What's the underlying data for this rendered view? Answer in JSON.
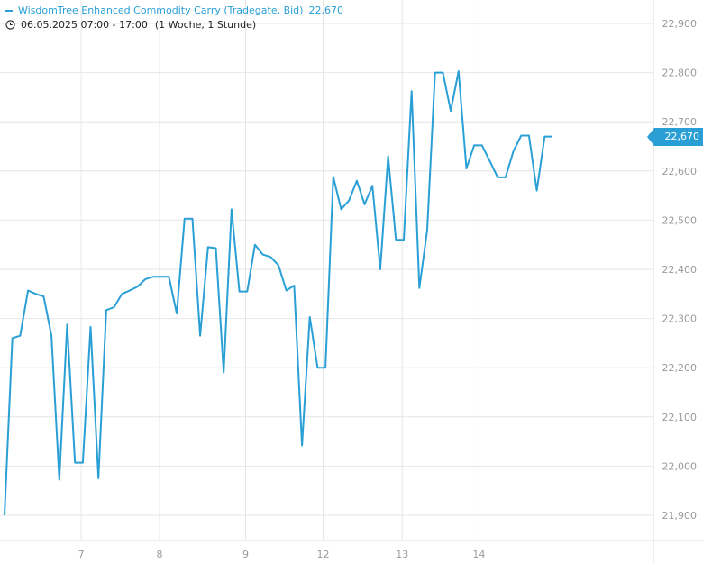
{
  "legend": {
    "title": "WisdomTree Enhanced Commodity Carry (Tradegate, Bid)",
    "last_value": "22,670"
  },
  "range": {
    "datetime": "06.05.2025 07:00 - 17:00",
    "period": "(1 Woche, 1 Stunde)"
  },
  "price_tag": "22,670",
  "colors": {
    "line": "#2a9fd6",
    "grid": "#e6e6e6",
    "axis_text": "#9a9a9a"
  },
  "icons": {
    "clock": "clock-icon"
  },
  "chart_data": {
    "type": "line",
    "title": "WisdomTree Enhanced Commodity Carry (Tradegate, Bid)",
    "xlabel": "",
    "ylabel": "",
    "ylim": [
      21.85,
      22.95
    ],
    "y_ticks": [
      "21,900",
      "22,000",
      "22,100",
      "22,200",
      "22,300",
      "22,400",
      "22,500",
      "22,600",
      "22,700",
      "22,800",
      "22,900"
    ],
    "y_tick_values": [
      21.9,
      22.0,
      22.1,
      22.2,
      22.3,
      22.4,
      22.5,
      22.6,
      22.7,
      22.8,
      22.9
    ],
    "x_ticks": [
      "7",
      "8",
      "9",
      "12",
      "13",
      "14"
    ],
    "x_tick_index": [
      9.8,
      19.8,
      30.8,
      40.7,
      50.8,
      60.6
    ],
    "grid": true,
    "last_value": 22.67,
    "series": [
      {
        "name": "WisdomTree Enhanced Commodity Carry (Tradegate, Bid)",
        "values": [
          21.9,
          22.26,
          22.265,
          22.357,
          22.35,
          22.345,
          22.265,
          21.972,
          22.288,
          22.007,
          22.007,
          22.283,
          21.975,
          22.317,
          22.323,
          22.35,
          22.357,
          22.365,
          22.38,
          22.385,
          22.385,
          22.385,
          22.31,
          22.503,
          22.503,
          22.265,
          22.445,
          22.443,
          22.19,
          22.522,
          22.355,
          22.355,
          22.45,
          22.43,
          22.425,
          22.408,
          22.357,
          22.367,
          22.042,
          22.303,
          22.2,
          22.2,
          22.588,
          22.522,
          22.54,
          22.58,
          22.532,
          22.57,
          22.4,
          22.63,
          22.46,
          22.46,
          22.762,
          22.362,
          22.48,
          22.8,
          22.8,
          22.722,
          22.803,
          22.605,
          22.652,
          22.652,
          22.62,
          22.587,
          22.587,
          22.64,
          22.672,
          22.672,
          22.56,
          22.67,
          22.67
        ]
      }
    ]
  }
}
